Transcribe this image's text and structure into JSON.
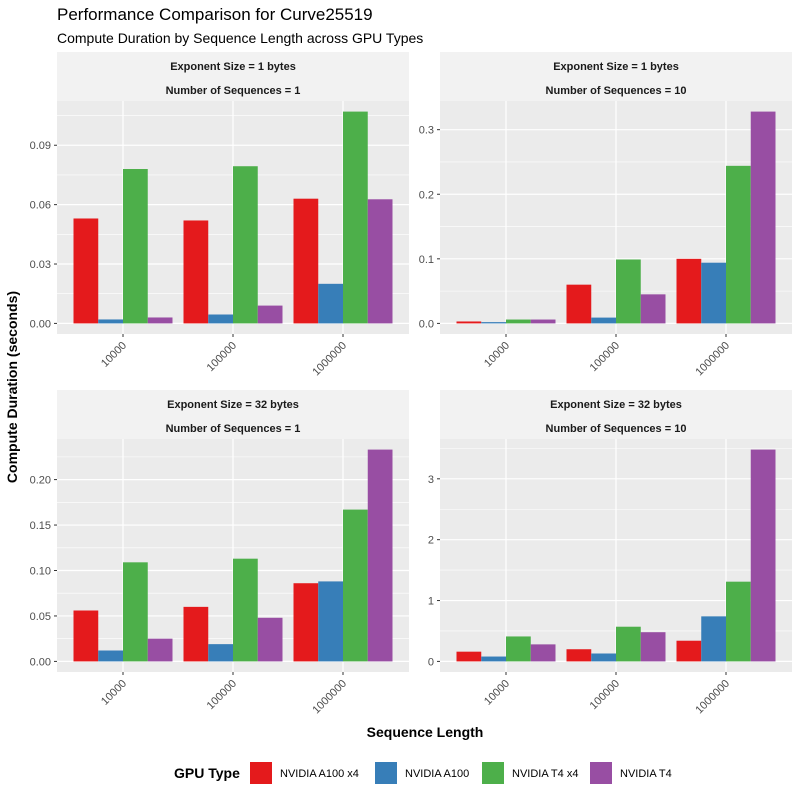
{
  "chart_data": {
    "type": "bar",
    "title": "Performance Comparison for Curve25519",
    "subtitle": "Compute Duration by Sequence Length across GPU Types",
    "xlabel": "Sequence Length",
    "ylabel": "Compute Duration (seconds)",
    "categories": [
      "10000",
      "100000",
      "1000000"
    ],
    "legend": {
      "title": "GPU Type",
      "position": "bottom",
      "entries": [
        {
          "name": "NVIDIA A100 x4",
          "color": "#E41A1C"
        },
        {
          "name": "NVIDIA A100",
          "color": "#377EB8"
        },
        {
          "name": "NVIDIA T4 x4",
          "color": "#4DAF4A"
        },
        {
          "name": "NVIDIA T4",
          "color": "#984EA3"
        }
      ]
    },
    "panels": [
      {
        "strip": [
          "Exponent Size = 1 bytes",
          "Number of Sequences = 1"
        ],
        "yticks": [
          0,
          0.03,
          0.06,
          0.09
        ],
        "ytick_labels": [
          "0.00",
          "0.03",
          "0.06",
          "0.09"
        ],
        "ylim": [
          0,
          0.107
        ],
        "series": [
          {
            "name": "NVIDIA A100 x4",
            "values": [
              0.053,
              0.052,
              0.063
            ]
          },
          {
            "name": "NVIDIA A100",
            "values": [
              0.002,
              0.0045,
              0.02
            ]
          },
          {
            "name": "NVIDIA T4 x4",
            "values": [
              0.078,
              0.0794,
              0.107
            ]
          },
          {
            "name": "NVIDIA T4",
            "values": [
              0.003,
              0.009,
              0.0627
            ]
          }
        ]
      },
      {
        "strip": [
          "Exponent Size = 1 bytes",
          "Number of Sequences = 10"
        ],
        "yticks": [
          0,
          0.1,
          0.2,
          0.3
        ],
        "ytick_labels": [
          "0.0",
          "0.1",
          "0.2",
          "0.3"
        ],
        "ylim": [
          0,
          0.328
        ],
        "series": [
          {
            "name": "NVIDIA A100 x4",
            "values": [
              0.003,
              0.06,
              0.1
            ]
          },
          {
            "name": "NVIDIA A100",
            "values": [
              0.002,
              0.009,
              0.094
            ]
          },
          {
            "name": "NVIDIA T4 x4",
            "values": [
              0.006,
              0.099,
              0.244
            ]
          },
          {
            "name": "NVIDIA T4",
            "values": [
              0.006,
              0.045,
              0.328
            ]
          }
        ]
      },
      {
        "strip": [
          "Exponent Size = 32 bytes",
          "Number of Sequences = 1"
        ],
        "yticks": [
          0,
          0.05,
          0.1,
          0.15,
          0.2
        ],
        "ytick_labels": [
          "0.00",
          "0.05",
          "0.10",
          "0.15",
          "0.20"
        ],
        "ylim": [
          0,
          0.233
        ],
        "series": [
          {
            "name": "NVIDIA A100 x4",
            "values": [
              0.056,
              0.06,
              0.086
            ]
          },
          {
            "name": "NVIDIA A100",
            "values": [
              0.012,
              0.019,
              0.088
            ]
          },
          {
            "name": "NVIDIA T4 x4",
            "values": [
              0.109,
              0.113,
              0.167
            ]
          },
          {
            "name": "NVIDIA T4",
            "values": [
              0.025,
              0.048,
              0.233
            ]
          }
        ]
      },
      {
        "strip": [
          "Exponent Size = 32 bytes",
          "Number of Sequences = 10"
        ],
        "yticks": [
          0,
          1,
          2,
          3
        ],
        "ytick_labels": [
          "0",
          "1",
          "2",
          "3"
        ],
        "ylim": [
          0,
          3.48
        ],
        "series": [
          {
            "name": "NVIDIA A100 x4",
            "values": [
              0.16,
              0.2,
              0.34
            ]
          },
          {
            "name": "NVIDIA A100",
            "values": [
              0.08,
              0.13,
              0.74
            ]
          },
          {
            "name": "NVIDIA T4 x4",
            "values": [
              0.41,
              0.57,
              1.31
            ]
          },
          {
            "name": "NVIDIA T4",
            "values": [
              0.28,
              0.48,
              3.48
            ]
          }
        ]
      }
    ]
  }
}
